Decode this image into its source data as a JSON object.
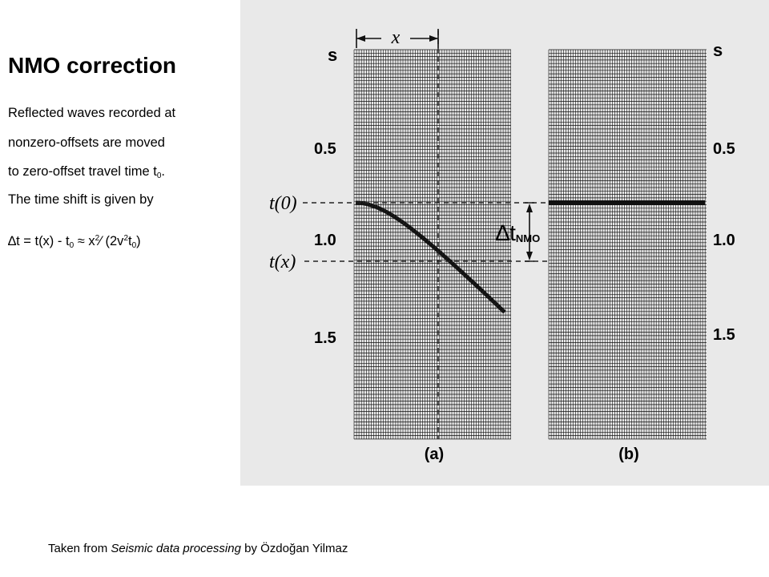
{
  "title": "NMO correction",
  "text_lines": [
    "Reflected waves recorded at",
    "nonzero-offsets are  moved",
    "to zero-offset travel time t",
    "The time shift is given by"
  ],
  "t_sub": "0",
  "period": ".",
  "formula": {
    "delta": "∆t = t(x) -  t",
    "sub0": "0",
    "approx": " ≈ x",
    "sup2": "2",
    "slash": "⁄ (2v",
    "sup2b": "2",
    "t": "t",
    "sub0b": "0",
    "close": ")"
  },
  "credit": {
    "prefix": "Taken from ",
    "book": "Seismic data processing",
    "suffix": " by Özdoğan Yilmaz"
  },
  "figure": {
    "time_unit": "s",
    "ticks": [
      "0.5",
      "1.0",
      "1.5"
    ],
    "t0_label": "t(0)",
    "tx_label": "t(x)",
    "offset_label": "x",
    "dt_label": "∆t",
    "dt_sub": "NMO",
    "panel_a": "(a)",
    "panel_b": "(b)"
  }
}
